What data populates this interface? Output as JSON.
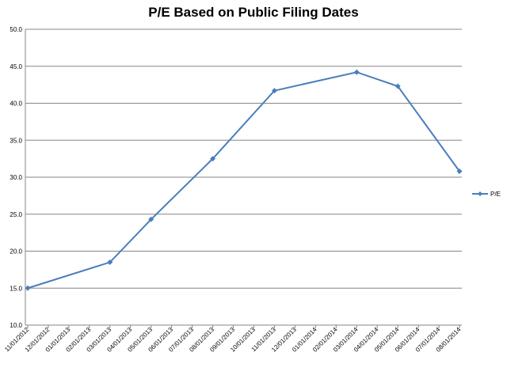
{
  "chart_data": {
    "type": "line",
    "title": "P/E Based on Public Filing Dates",
    "xlabel": "",
    "ylabel": "",
    "ylim": [
      10.0,
      50.0
    ],
    "yticks": [
      "10.0",
      "15.0",
      "20.0",
      "25.0",
      "30.0",
      "35.0",
      "40.0",
      "45.0",
      "50.0"
    ],
    "categories": [
      "11/01/2012",
      "12/01/2012",
      "01/01/2013",
      "02/01/2013",
      "03/01/2013",
      "04/01/2013",
      "05/01/2013",
      "06/01/2013",
      "07/01/2013",
      "08/01/2013",
      "09/01/2013",
      "10/01/2013",
      "11/01/2013",
      "12/01/2013",
      "01/01/2014",
      "02/01/2014",
      "03/01/2014",
      "04/01/2014",
      "05/01/2014",
      "06/01/2014",
      "07/01/2014",
      "08/01/2014"
    ],
    "grid": true,
    "legend_position": "right",
    "series": [
      {
        "name": "P/E",
        "color": "#4a7ebb",
        "marker": "diamond",
        "points": [
          {
            "x": "11/01/2012",
            "y": 15.0
          },
          {
            "x": "03/01/2013",
            "y": 18.5
          },
          {
            "x": "05/01/2013",
            "y": 24.3
          },
          {
            "x": "08/01/2013",
            "y": 32.5
          },
          {
            "x": "11/01/2013",
            "y": 41.7
          },
          {
            "x": "03/01/2014",
            "y": 44.2
          },
          {
            "x": "05/01/2014",
            "y": 42.3
          },
          {
            "x": "08/01/2014",
            "y": 30.8
          }
        ]
      }
    ]
  }
}
